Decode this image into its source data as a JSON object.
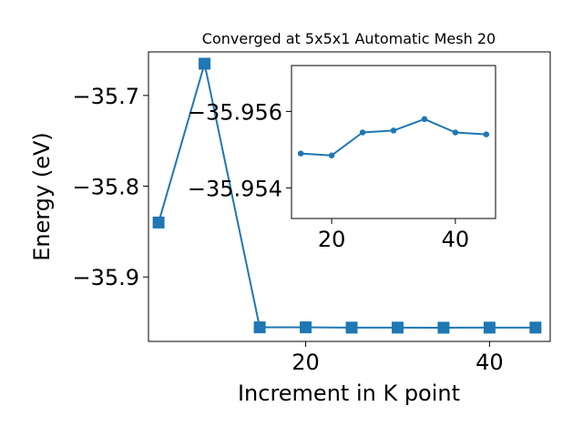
{
  "chart_data": [
    {
      "type": "line",
      "title": "Converged at 5x5x1 Automatic Mesh 20",
      "xlabel": "Increment in K point",
      "ylabel": "Energy (eV)",
      "x": [
        4,
        9,
        15,
        20,
        25,
        30,
        35,
        40,
        45
      ],
      "y": [
        -35.84,
        -35.665,
        -35.9555,
        -35.9555,
        -35.9558,
        -35.9558,
        -35.9559,
        -35.9558,
        -35.9558
      ],
      "marker": "square",
      "color": "#1f77b4",
      "xlim": [
        2.9,
        46.6
      ],
      "ylim": [
        -35.971,
        -35.652
      ],
      "xticks": [
        20,
        40
      ],
      "yticks": [
        -35.7,
        -35.8,
        -35.9
      ],
      "xtick_labels": [
        "20",
        "40"
      ],
      "ytick_labels": [
        "−35.7",
        "−35.8",
        "−35.9"
      ]
    },
    {
      "type": "line",
      "title": "",
      "xlabel": "",
      "ylabel": "",
      "x": [
        15,
        20,
        25,
        30,
        35,
        40,
        45
      ],
      "y": [
        -35.9549,
        -35.95485,
        -35.95545,
        -35.9555,
        -35.9558,
        -35.95545,
        -35.9554
      ],
      "marker": "circle",
      "color": "#1f77b4",
      "xlim": [
        13.5,
        46.5
      ],
      "ylim": [
        -35.9532,
        -35.9572
      ],
      "xticks": [
        20,
        40
      ],
      "yticks": [
        -35.956,
        -35.954
      ],
      "xtick_labels": [
        "20",
        "40"
      ],
      "ytick_labels": [
        "−35.956",
        "−35.954"
      ]
    }
  ]
}
